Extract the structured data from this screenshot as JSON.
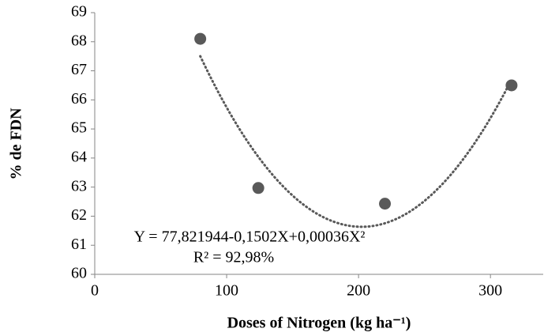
{
  "chart_data": {
    "type": "scatter",
    "x_label": "Doses of Nitrogen (kg ha⁻¹)",
    "y_label": "% de FDN",
    "annotations": [
      "Y = 77,821944-0,1502X+0,00036X²",
      "R² = 92,98%"
    ],
    "x": [
      80,
      124,
      220,
      316
    ],
    "values": [
      68.1,
      62.97,
      62.43,
      66.5
    ],
    "color": "#595959",
    "trendline": "polynomial-2",
    "trendline_color": "#595959",
    "xlim": [
      0,
      340
    ],
    "xticks": [
      0,
      100,
      200,
      300
    ],
    "ylim": [
      60,
      69
    ],
    "yticks": [
      60,
      61,
      62,
      63,
      64,
      65,
      66,
      67,
      68,
      69
    ]
  }
}
